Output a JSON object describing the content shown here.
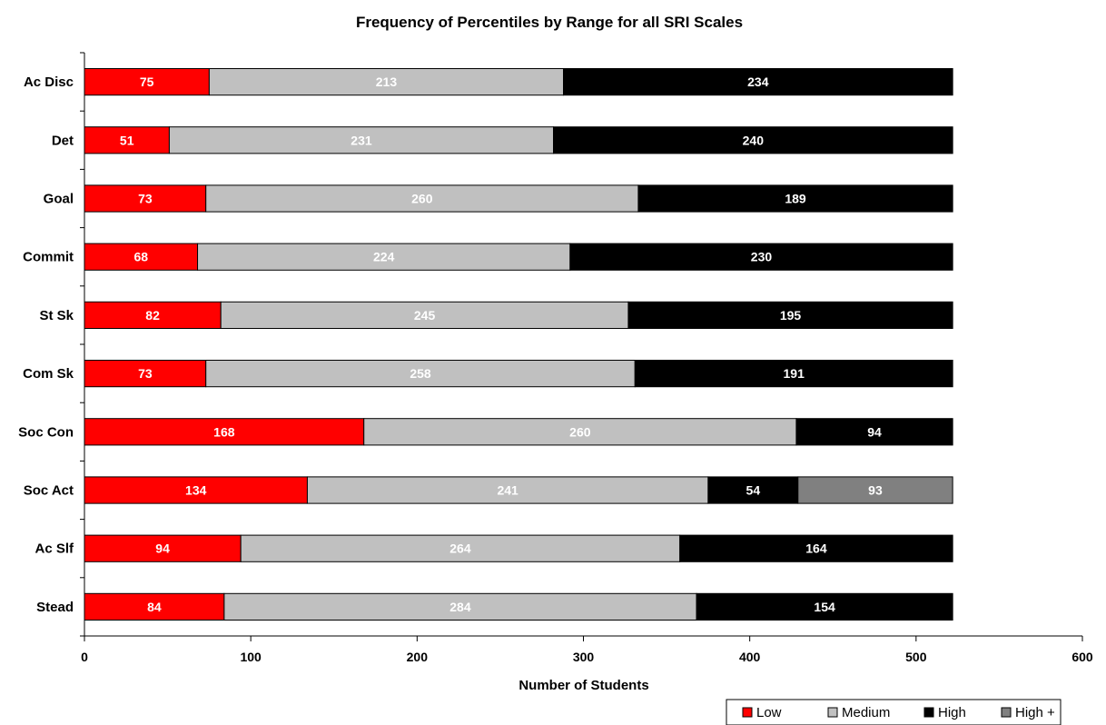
{
  "chart_data": {
    "type": "bar",
    "orientation": "horizontal",
    "stacked": true,
    "title": "Frequency of Percentiles by Range for all SRI Scales",
    "xlabel": "Number of Students",
    "ylabel": "",
    "xlim": [
      0,
      600
    ],
    "xticks": [
      "0",
      "100",
      "200",
      "300",
      "400",
      "500",
      "600"
    ],
    "grid": false,
    "legend_position": "bottom-right",
    "categories": [
      "Ac Disc",
      "Det",
      "Goal",
      "Commit",
      "St Sk",
      "Com Sk",
      "Soc Con",
      "Soc Act",
      "Ac Slf",
      "Stead"
    ],
    "series": [
      {
        "name": "Low",
        "color": "#ff0000",
        "label_color": "#ffffff",
        "values": [
          75,
          51,
          73,
          68,
          82,
          73,
          168,
          134,
          94,
          84
        ]
      },
      {
        "name": "Medium",
        "color": "#c0c0c0",
        "label_color": "#ffffff",
        "values": [
          213,
          231,
          260,
          224,
          245,
          258,
          260,
          241,
          264,
          284
        ]
      },
      {
        "name": "High",
        "color": "#000000",
        "label_color": "#ffffff",
        "values": [
          234,
          240,
          189,
          230,
          195,
          191,
          94,
          54,
          164,
          154
        ]
      },
      {
        "name": "High +",
        "color": "#808080",
        "label_color": "#ffffff",
        "values": [
          0,
          0,
          0,
          0,
          0,
          0,
          0,
          93,
          0,
          0
        ]
      }
    ]
  }
}
